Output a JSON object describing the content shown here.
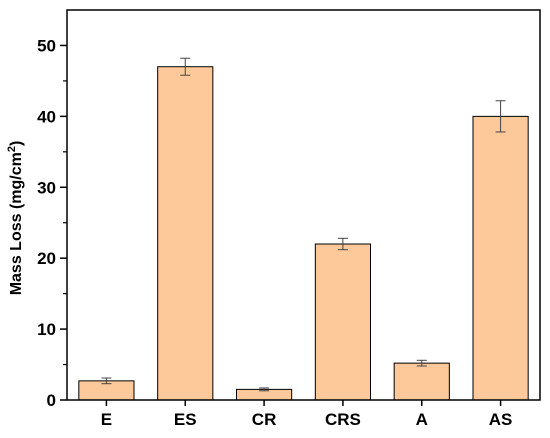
{
  "chart_data": {
    "type": "bar",
    "categories": [
      "E",
      "ES",
      "CR",
      "CRS",
      "A",
      "AS"
    ],
    "values": [
      2.7,
      47.0,
      1.5,
      22.0,
      5.2,
      40.0
    ],
    "errors": [
      0.4,
      1.2,
      0.2,
      0.8,
      0.4,
      2.2
    ],
    "ylabel": "Mass Loss (mg/cm",
    "ylabel_sup": "2",
    "ylabel_close": ")",
    "xlabel": "",
    "ylim": [
      0,
      55
    ],
    "yticks": [
      0,
      10,
      20,
      30,
      40,
      50
    ],
    "grid": false,
    "colors": {
      "bar_fill": "#FDC89A",
      "bar_stroke": "#000000",
      "axis": "#000000",
      "error": "#444444"
    }
  }
}
